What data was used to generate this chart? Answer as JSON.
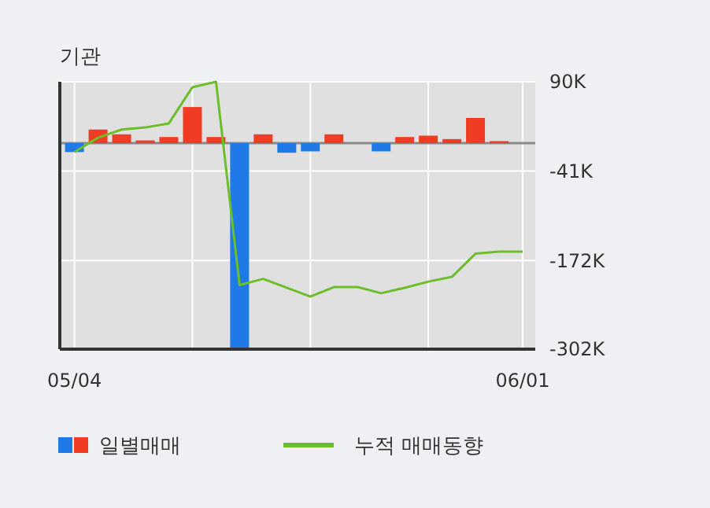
{
  "chart_data": {
    "type": "bar",
    "title": "기관",
    "categories": [
      "05/04",
      null,
      null,
      null,
      null,
      null,
      null,
      null,
      null,
      null,
      null,
      null,
      null,
      null,
      null,
      null,
      null,
      null,
      null,
      "06/01"
    ],
    "series": [
      {
        "name": "일별매매",
        "colors": [
          "#1f7ae8",
          "#f03c23",
          "#f03c23",
          "#f03c23",
          "#f03c23",
          "#f03c23",
          "#f03c23",
          "#1f7ae8",
          "#f03c23",
          "#1f7ae8",
          "#1f7ae8",
          "#f03c23",
          null,
          "#1f7ae8",
          "#f03c23",
          "#f03c23",
          "#f03c23",
          "#f03c23",
          "#f03c23",
          null
        ],
        "values": [
          -13,
          20,
          13,
          4,
          9,
          53,
          9,
          -300,
          13,
          -14,
          -12,
          13,
          0,
          -12,
          9,
          11,
          6,
          37,
          3,
          0
        ]
      },
      {
        "name": "누적 매매동향",
        "type": "line",
        "color": "#6cbf2a",
        "values": [
          -13,
          8,
          20,
          23,
          29,
          82,
          90,
          -208,
          -199,
          -212,
          -225,
          -211,
          -211,
          -220,
          -212,
          -203,
          -196,
          -162,
          -159,
          -159
        ]
      }
    ],
    "ylim": [
      -302,
      90
    ],
    "yticks": [
      {
        "value": 90,
        "label": "90K"
      },
      {
        "value": -41,
        "label": "-41K"
      },
      {
        "value": -172,
        "label": "-172K"
      },
      {
        "value": -302,
        "label": "-302K"
      }
    ],
    "ref_lines": [
      {
        "axis": "y",
        "value": 0,
        "color": "#8a8a8a"
      }
    ],
    "grid": true,
    "legend": "bottom",
    "marker": "none",
    "line_style": "solid"
  }
}
